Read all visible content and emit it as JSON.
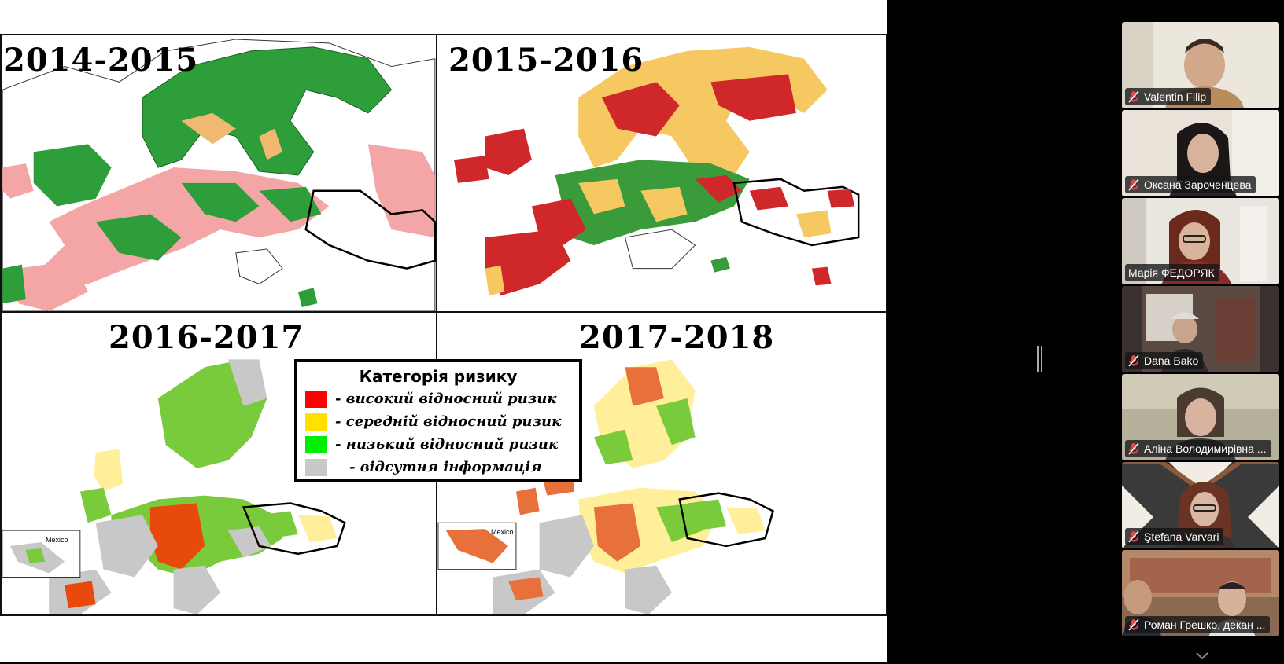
{
  "slide": {
    "panels": [
      {
        "year": "2014-2015"
      },
      {
        "year": "2015-2016"
      },
      {
        "year": "2016-2017"
      },
      {
        "year": "2017-2018"
      }
    ],
    "inset_label": "Mexico",
    "legend": {
      "title": "Категорія ризику",
      "items": [
        {
          "color": "#ff0000",
          "label": "- високий відносний ризик"
        },
        {
          "color": "#ffe000",
          "label": "- середній відносний ризик"
        },
        {
          "color": "#00ee00",
          "label": "- низький відносний ризик"
        },
        {
          "color": "#c8c8c8",
          "label": "- відсутня інформація"
        }
      ]
    }
  },
  "participants": [
    {
      "name": "Valentin Filip",
      "muted": true
    },
    {
      "name": "Оксана Зароченцева",
      "muted": true
    },
    {
      "name": "Марія ФЕДОРЯК",
      "muted": false,
      "active": true
    },
    {
      "name": "Dana Bako",
      "muted": true
    },
    {
      "name": "Аліна Володимирівна ...",
      "muted": true
    },
    {
      "name": "Ştefana Varvari",
      "muted": true
    },
    {
      "name": "Роман Грешко, декан ...",
      "muted": true
    }
  ],
  "colors": {
    "active_speaker": "#35d16e",
    "muted_icon": "#e5484d"
  }
}
